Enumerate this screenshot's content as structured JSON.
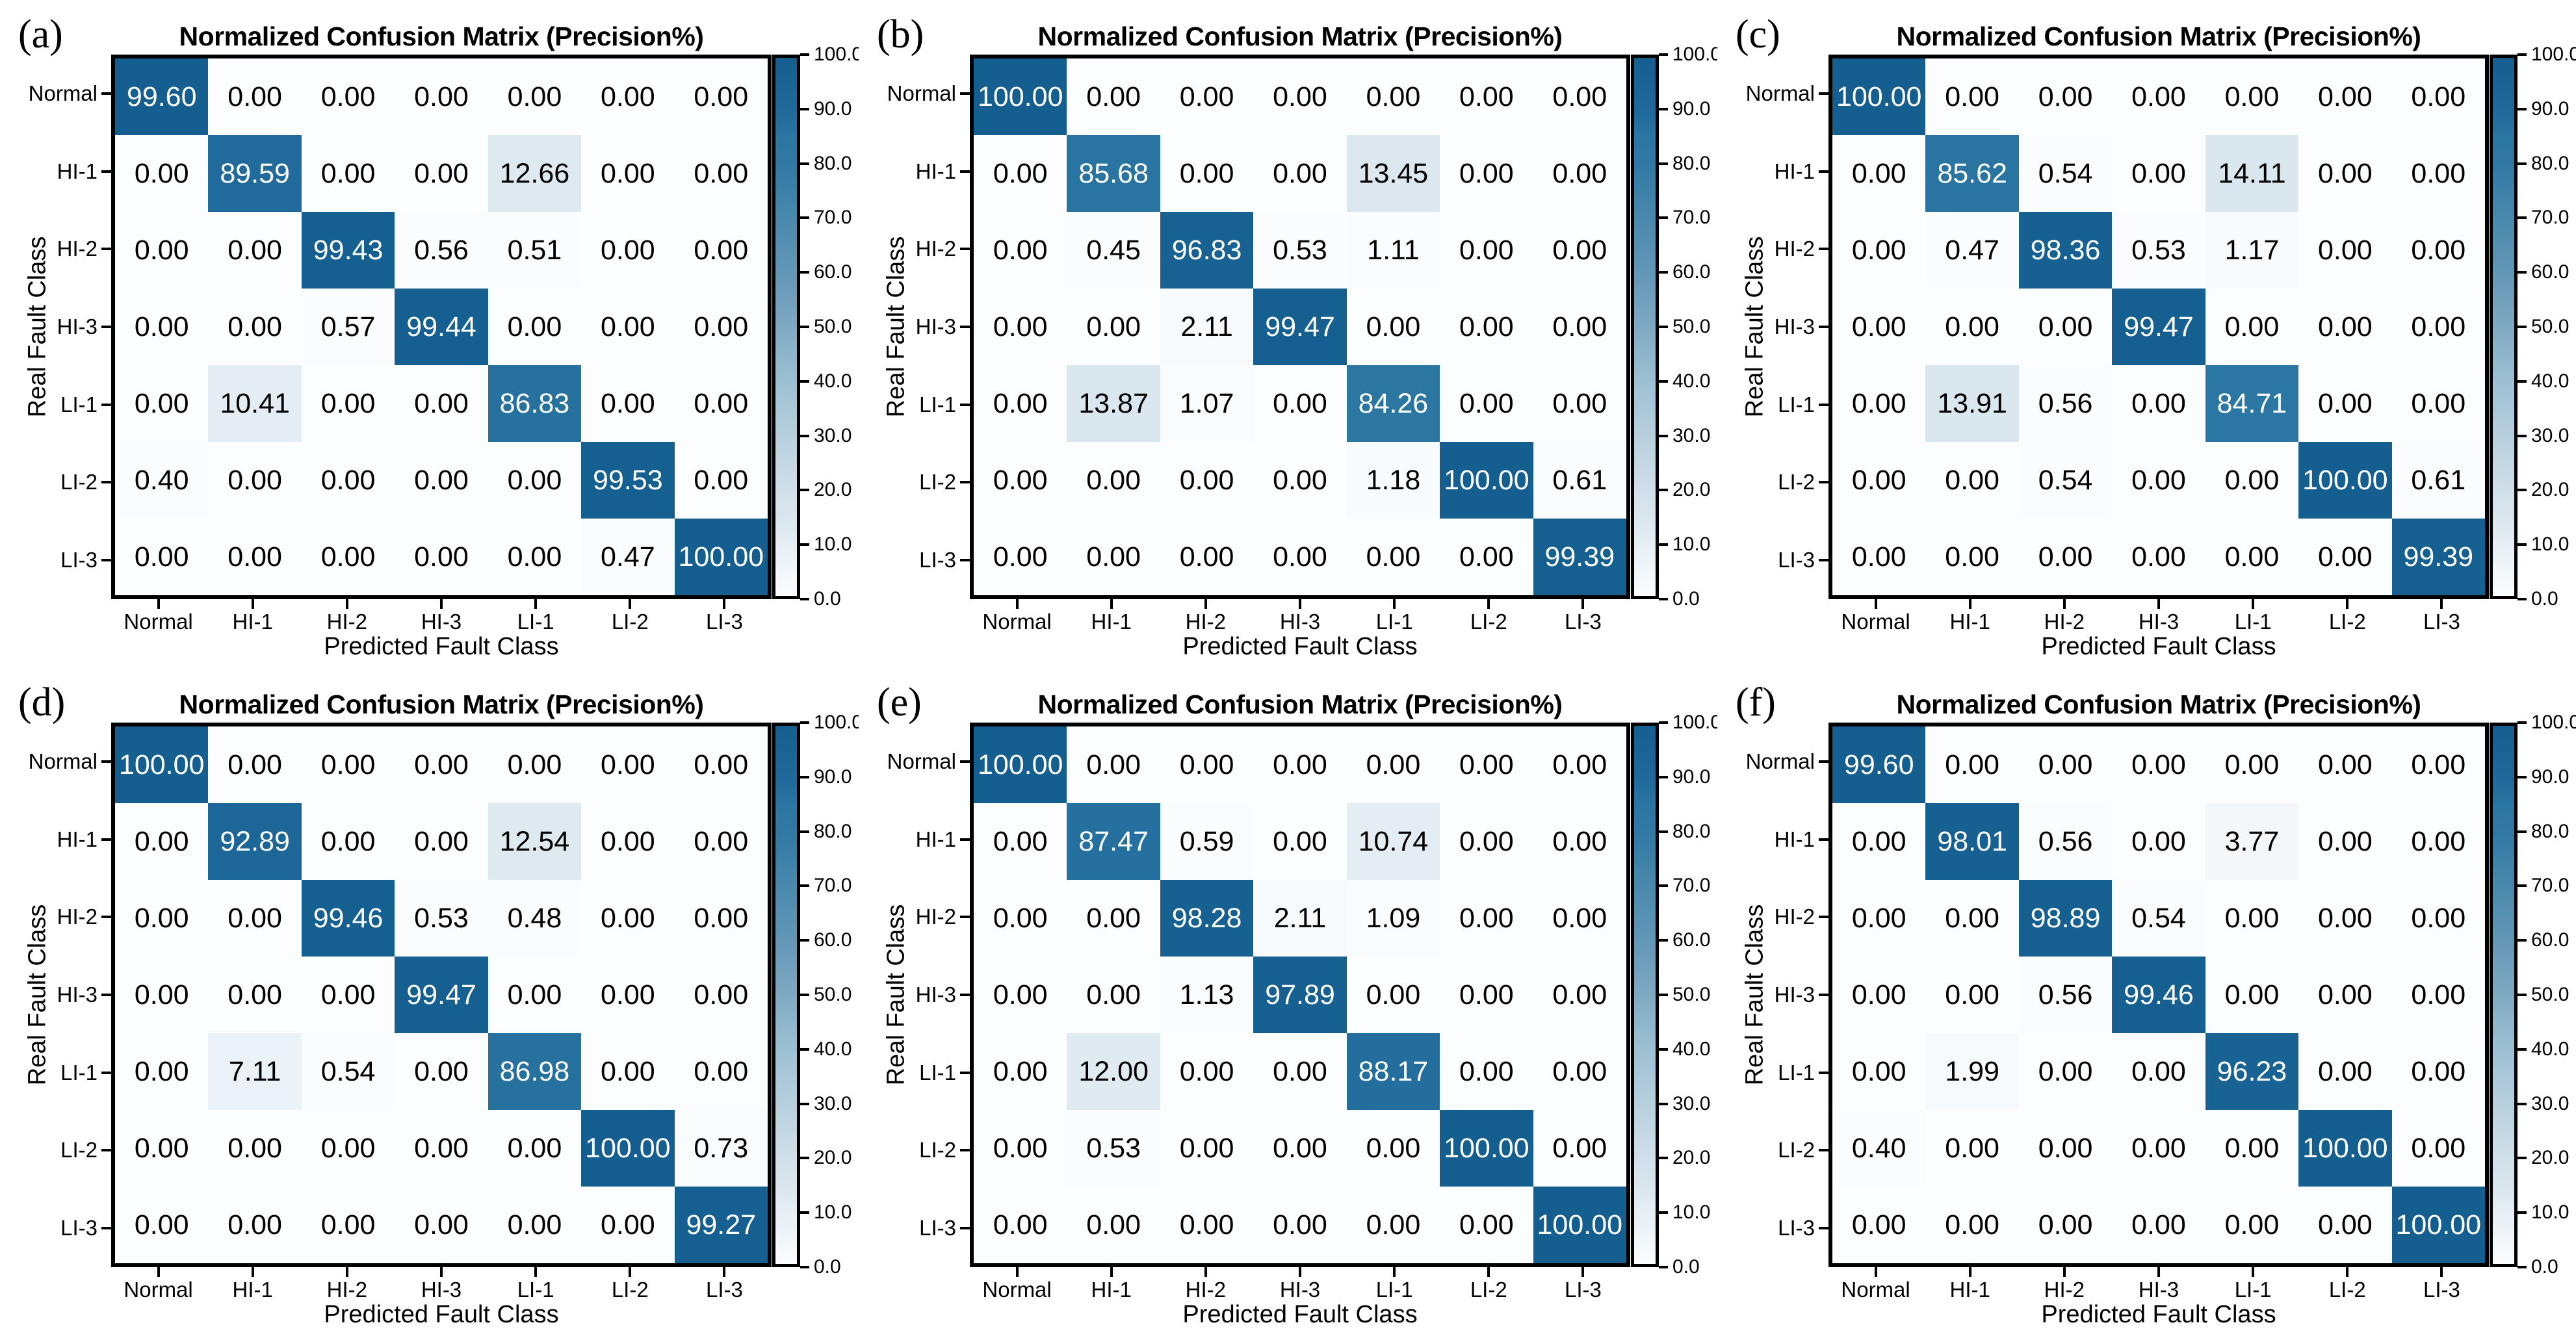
{
  "page": {
    "background": "#ffffff"
  },
  "colors": {
    "colormap_stops": [
      [
        0,
        "#fbfdfe"
      ],
      [
        10,
        "#e5eef4"
      ],
      [
        13,
        "#dde8ef"
      ],
      [
        20,
        "#cfdfe9"
      ],
      [
        30,
        "#b7cfdd"
      ],
      [
        40,
        "#9cc0d3"
      ],
      [
        50,
        "#7fa9c2"
      ],
      [
        60,
        "#6397b6"
      ],
      [
        70,
        "#4a89ad"
      ],
      [
        80,
        "#3179a4"
      ],
      [
        85,
        "#2b76a2"
      ],
      [
        90,
        "#20699b"
      ],
      [
        100,
        "#145e90"
      ]
    ],
    "cell_text_light": "#ffffff",
    "cell_text_dark": "#000000",
    "spine": "#000000"
  },
  "chart_data": [
    {
      "type": "heatmap",
      "label": "(a)",
      "title": "Normalized Confusion Matrix (Precision%)",
      "xlabel": "Predicted Fault Class",
      "ylabel": "Real Fault Class",
      "categories": [
        "Normal",
        "HI-1",
        "HI-2",
        "HI-3",
        "LI-1",
        "LI-2",
        "LI-3"
      ],
      "matrix": [
        [
          99.6,
          0.0,
          0.0,
          0.0,
          0.0,
          0.0,
          0.0
        ],
        [
          0.0,
          89.59,
          0.0,
          0.0,
          12.66,
          0.0,
          0.0
        ],
        [
          0.0,
          0.0,
          99.43,
          0.56,
          0.51,
          0.0,
          0.0
        ],
        [
          0.0,
          0.0,
          0.57,
          99.44,
          0.0,
          0.0,
          0.0
        ],
        [
          0.0,
          10.41,
          0.0,
          0.0,
          86.83,
          0.0,
          0.0
        ],
        [
          0.4,
          0.0,
          0.0,
          0.0,
          0.0,
          99.53,
          0.0
        ],
        [
          0.0,
          0.0,
          0.0,
          0.0,
          0.0,
          0.47,
          100.0
        ]
      ],
      "value_range": [
        0,
        100
      ],
      "text_threshold": 50,
      "colorbar_ticks": [
        "100.0",
        "90.0",
        "80.0",
        "70.0",
        "60.0",
        "50.0",
        "40.0",
        "30.0",
        "20.0",
        "10.0",
        "0.0"
      ]
    },
    {
      "type": "heatmap",
      "label": "(b)",
      "title": "Normalized Confusion Matrix (Precision%)",
      "xlabel": "Predicted Fault Class",
      "ylabel": "Real Fault Class",
      "categories": [
        "Normal",
        "HI-1",
        "HI-2",
        "HI-3",
        "LI-1",
        "LI-2",
        "LI-3"
      ],
      "matrix": [
        [
          100.0,
          0.0,
          0.0,
          0.0,
          0.0,
          0.0,
          0.0
        ],
        [
          0.0,
          85.68,
          0.0,
          0.0,
          13.45,
          0.0,
          0.0
        ],
        [
          0.0,
          0.45,
          96.83,
          0.53,
          1.11,
          0.0,
          0.0
        ],
        [
          0.0,
          0.0,
          2.11,
          99.47,
          0.0,
          0.0,
          0.0
        ],
        [
          0.0,
          13.87,
          1.07,
          0.0,
          84.26,
          0.0,
          0.0
        ],
        [
          0.0,
          0.0,
          0.0,
          0.0,
          1.18,
          100.0,
          0.61
        ],
        [
          0.0,
          0.0,
          0.0,
          0.0,
          0.0,
          0.0,
          99.39
        ]
      ],
      "value_range": [
        0,
        100
      ],
      "text_threshold": 50,
      "colorbar_ticks": [
        "100.0",
        "90.0",
        "80.0",
        "70.0",
        "60.0",
        "50.0",
        "40.0",
        "30.0",
        "20.0",
        "10.0",
        "0.0"
      ]
    },
    {
      "type": "heatmap",
      "label": "(c)",
      "title": "Normalized Confusion Matrix (Precision%)",
      "xlabel": "Predicted Fault Class",
      "ylabel": "Real Fault Class",
      "categories": [
        "Normal",
        "HI-1",
        "HI-2",
        "HI-3",
        "LI-1",
        "LI-2",
        "LI-3"
      ],
      "matrix": [
        [
          100.0,
          0.0,
          0.0,
          0.0,
          0.0,
          0.0,
          0.0
        ],
        [
          0.0,
          85.62,
          0.54,
          0.0,
          14.11,
          0.0,
          0.0
        ],
        [
          0.0,
          0.47,
          98.36,
          0.53,
          1.17,
          0.0,
          0.0
        ],
        [
          0.0,
          0.0,
          0.0,
          99.47,
          0.0,
          0.0,
          0.0
        ],
        [
          0.0,
          13.91,
          0.56,
          0.0,
          84.71,
          0.0,
          0.0
        ],
        [
          0.0,
          0.0,
          0.54,
          0.0,
          0.0,
          100.0,
          0.61
        ],
        [
          0.0,
          0.0,
          0.0,
          0.0,
          0.0,
          0.0,
          99.39
        ]
      ],
      "value_range": [
        0,
        100
      ],
      "text_threshold": 50,
      "colorbar_ticks": [
        "100.0",
        "90.0",
        "80.0",
        "70.0",
        "60.0",
        "50.0",
        "40.0",
        "30.0",
        "20.0",
        "10.0",
        "0.0"
      ]
    },
    {
      "type": "heatmap",
      "label": "(d)",
      "title": "Normalized Confusion Matrix (Precision%)",
      "xlabel": "Predicted Fault Class",
      "ylabel": "Real Fault Class",
      "categories": [
        "Normal",
        "HI-1",
        "HI-2",
        "HI-3",
        "LI-1",
        "LI-2",
        "LI-3"
      ],
      "matrix": [
        [
          100.0,
          0.0,
          0.0,
          0.0,
          0.0,
          0.0,
          0.0
        ],
        [
          0.0,
          92.89,
          0.0,
          0.0,
          12.54,
          0.0,
          0.0
        ],
        [
          0.0,
          0.0,
          99.46,
          0.53,
          0.48,
          0.0,
          0.0
        ],
        [
          0.0,
          0.0,
          0.0,
          99.47,
          0.0,
          0.0,
          0.0
        ],
        [
          0.0,
          7.11,
          0.54,
          0.0,
          86.98,
          0.0,
          0.0
        ],
        [
          0.0,
          0.0,
          0.0,
          0.0,
          0.0,
          100.0,
          0.73
        ],
        [
          0.0,
          0.0,
          0.0,
          0.0,
          0.0,
          0.0,
          99.27
        ]
      ],
      "value_range": [
        0,
        100
      ],
      "text_threshold": 50,
      "colorbar_ticks": [
        "100.0",
        "90.0",
        "80.0",
        "70.0",
        "60.0",
        "50.0",
        "40.0",
        "30.0",
        "20.0",
        "10.0",
        "0.0"
      ]
    },
    {
      "type": "heatmap",
      "label": "(e)",
      "title": "Normalized Confusion Matrix (Precision%)",
      "xlabel": "Predicted Fault Class",
      "ylabel": "Real Fault Class",
      "categories": [
        "Normal",
        "HI-1",
        "HI-2",
        "HI-3",
        "LI-1",
        "LI-2",
        "LI-3"
      ],
      "matrix": [
        [
          100.0,
          0.0,
          0.0,
          0.0,
          0.0,
          0.0,
          0.0
        ],
        [
          0.0,
          87.47,
          0.59,
          0.0,
          10.74,
          0.0,
          0.0
        ],
        [
          0.0,
          0.0,
          98.28,
          2.11,
          1.09,
          0.0,
          0.0
        ],
        [
          0.0,
          0.0,
          1.13,
          97.89,
          0.0,
          0.0,
          0.0
        ],
        [
          0.0,
          12.0,
          0.0,
          0.0,
          88.17,
          0.0,
          0.0
        ],
        [
          0.0,
          0.53,
          0.0,
          0.0,
          0.0,
          100.0,
          0.0
        ],
        [
          0.0,
          0.0,
          0.0,
          0.0,
          0.0,
          0.0,
          100.0
        ]
      ],
      "value_range": [
        0,
        100
      ],
      "text_threshold": 50,
      "colorbar_ticks": [
        "100.0",
        "90.0",
        "80.0",
        "70.0",
        "60.0",
        "50.0",
        "40.0",
        "30.0",
        "20.0",
        "10.0",
        "0.0"
      ]
    },
    {
      "type": "heatmap",
      "label": "(f)",
      "title": "Normalized Confusion Matrix (Precision%)",
      "xlabel": "Predicted Fault Class",
      "ylabel": "Real Fault Class",
      "categories": [
        "Normal",
        "HI-1",
        "HI-2",
        "HI-3",
        "LI-1",
        "LI-2",
        "LI-3"
      ],
      "matrix": [
        [
          99.6,
          0.0,
          0.0,
          0.0,
          0.0,
          0.0,
          0.0
        ],
        [
          0.0,
          98.01,
          0.56,
          0.0,
          3.77,
          0.0,
          0.0
        ],
        [
          0.0,
          0.0,
          98.89,
          0.54,
          0.0,
          0.0,
          0.0
        ],
        [
          0.0,
          0.0,
          0.56,
          99.46,
          0.0,
          0.0,
          0.0
        ],
        [
          0.0,
          1.99,
          0.0,
          0.0,
          96.23,
          0.0,
          0.0
        ],
        [
          0.4,
          0.0,
          0.0,
          0.0,
          0.0,
          100.0,
          0.0
        ],
        [
          0.0,
          0.0,
          0.0,
          0.0,
          0.0,
          0.0,
          100.0
        ]
      ],
      "value_range": [
        0,
        100
      ],
      "text_threshold": 50,
      "colorbar_ticks": [
        "100.0",
        "90.0",
        "80.0",
        "70.0",
        "60.0",
        "50.0",
        "40.0",
        "30.0",
        "20.0",
        "10.0",
        "0.0"
      ]
    }
  ]
}
